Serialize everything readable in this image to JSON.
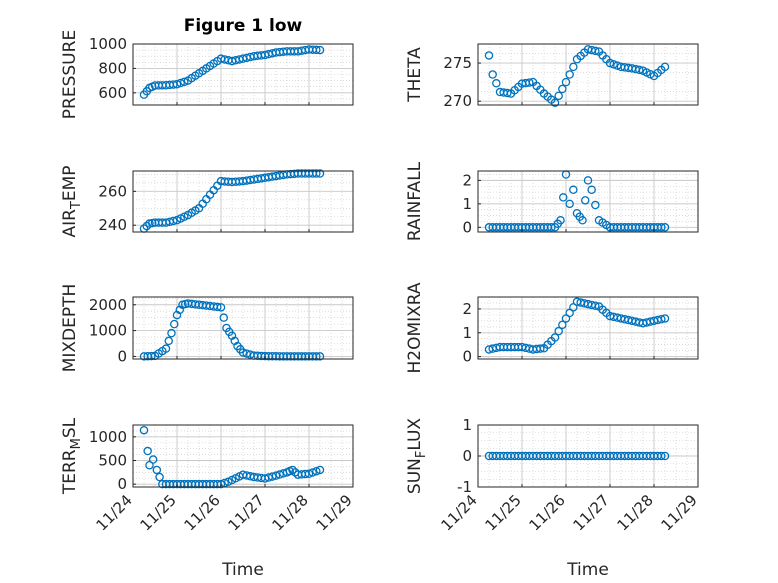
{
  "figure": {
    "title": "Figure 1 low"
  },
  "chart_data": [
    {
      "type": "scatter",
      "ylabel": "PRESSURE",
      "xlabel": "",
      "title": "Figure 1 low",
      "ylim": [
        500,
        1000
      ],
      "yticks": [
        "600",
        "800",
        "1000"
      ],
      "ytick_values": [
        600,
        800,
        1000
      ],
      "x": [
        "2024-11-24 06:00",
        "2024-11-24 09:00",
        "2024-11-24 12:00",
        "2024-11-24 18:00",
        "2024-11-25 00:00",
        "2024-11-25 06:00",
        "2024-11-25 12:00",
        "2024-11-25 18:00",
        "2024-11-26 00:00",
        "2024-11-26 06:00",
        "2024-11-26 12:00",
        "2024-11-26 18:00",
        "2024-11-27 00:00",
        "2024-11-27 06:00",
        "2024-11-27 12:00",
        "2024-11-27 18:00",
        "2024-11-28 00:00",
        "2024-11-28 06:00"
      ],
      "y": [
        585,
        640,
        660,
        662,
        670,
        700,
        760,
        820,
        880,
        860,
        880,
        900,
        910,
        930,
        940,
        940,
        955,
        950
      ]
    },
    {
      "type": "scatter",
      "ylabel": "THETA",
      "xlabel": "",
      "ylim": [
        269.5,
        277.5
      ],
      "yticks": [
        "270",
        "275"
      ],
      "ytick_values": [
        270,
        275
      ],
      "x": [
        "2024-11-24 06:00",
        "2024-11-24 08:00",
        "2024-11-24 12:00",
        "2024-11-24 18:00",
        "2024-11-25 00:00",
        "2024-11-25 06:00",
        "2024-11-25 12:00",
        "2024-11-25 18:00",
        "2024-11-26 00:00",
        "2024-11-26 06:00",
        "2024-11-26 12:00",
        "2024-11-26 18:00",
        "2024-11-27 00:00",
        "2024-11-27 06:00",
        "2024-11-27 12:00",
        "2024-11-27 18:00",
        "2024-11-28 00:00",
        "2024-11-28 06:00"
      ],
      "y": [
        276,
        273.5,
        271.2,
        271,
        272.3,
        272.5,
        271,
        269.8,
        272.5,
        275.5,
        276.8,
        276.5,
        275,
        274.5,
        274.3,
        274,
        273.3,
        274.5
      ]
    },
    {
      "type": "scatter",
      "ylabel": "AIR_TEMP",
      "ylabel_main": "AIR",
      "ylabel_sub": "T",
      "ylabel_rest": "EMP",
      "xlabel": "",
      "ylim": [
        236,
        272
      ],
      "yticks": [
        "240",
        "260"
      ],
      "ytick_values": [
        240,
        260
      ],
      "x": [
        "2024-11-24 06:00",
        "2024-11-24 09:00",
        "2024-11-24 12:00",
        "2024-11-24 18:00",
        "2024-11-25 00:00",
        "2024-11-25 06:00",
        "2024-11-25 12:00",
        "2024-11-25 18:00",
        "2024-11-26 00:00",
        "2024-11-26 06:00",
        "2024-11-26 12:00",
        "2024-11-26 18:00",
        "2024-11-27 00:00",
        "2024-11-27 06:00",
        "2024-11-27 12:00",
        "2024-11-27 18:00",
        "2024-11-28 00:00",
        "2024-11-28 06:00"
      ],
      "y": [
        238,
        241,
        241.5,
        241.5,
        243,
        246,
        250,
        258,
        266,
        265.5,
        266,
        267,
        268,
        269,
        270,
        270.5,
        270.5,
        270.5
      ]
    },
    {
      "type": "scatter",
      "ylabel": "RAINFALL",
      "xlabel": "",
      "ylim": [
        -0.2,
        2.4
      ],
      "yticks": [
        "0",
        "1",
        "2"
      ],
      "ytick_values": [
        0,
        1,
        2
      ],
      "x": [
        "2024-11-24 06:00",
        "2024-11-24 12:00",
        "2024-11-24 18:00",
        "2024-11-25 00:00",
        "2024-11-25 06:00",
        "2024-11-25 12:00",
        "2024-11-25 18:00",
        "2024-11-25 21:00",
        "2024-11-26 00:00",
        "2024-11-26 02:00",
        "2024-11-26 04:00",
        "2024-11-26 06:00",
        "2024-11-26 09:00",
        "2024-11-26 12:00",
        "2024-11-26 14:00",
        "2024-11-26 18:00",
        "2024-11-27 00:00",
        "2024-11-27 06:00",
        "2024-11-27 12:00",
        "2024-11-27 18:00",
        "2024-11-28 00:00",
        "2024-11-28 06:00"
      ],
      "y": [
        0,
        0,
        0,
        0,
        0,
        0,
        0,
        0.3,
        2.25,
        1.0,
        1.6,
        0.6,
        0.3,
        2.0,
        1.6,
        0.3,
        0,
        0,
        0,
        0,
        0,
        0
      ]
    },
    {
      "type": "scatter",
      "ylabel": "MIXDEPTH",
      "xlabel": "",
      "ylim": [
        -100,
        2300
      ],
      "yticks": [
        "0",
        "1000",
        "2000"
      ],
      "ytick_values": [
        0,
        1000,
        2000
      ],
      "x": [
        "2024-11-24 06:00",
        "2024-11-24 12:00",
        "2024-11-24 18:00",
        "2024-11-24 21:00",
        "2024-11-25 00:00",
        "2024-11-25 03:00",
        "2024-11-25 06:00",
        "2024-11-25 12:00",
        "2024-11-25 18:00",
        "2024-11-26 00:00",
        "2024-11-26 03:00",
        "2024-11-26 06:00",
        "2024-11-26 09:00",
        "2024-11-26 12:00",
        "2024-11-26 18:00",
        "2024-11-27 00:00",
        "2024-11-27 12:00",
        "2024-11-28 00:00",
        "2024-11-28 06:00"
      ],
      "y": [
        0,
        20,
        300,
        900,
        1600,
        2000,
        2050,
        2000,
        1950,
        1900,
        1100,
        800,
        400,
        150,
        30,
        10,
        0,
        0,
        0
      ]
    },
    {
      "type": "scatter",
      "ylabel": "H2OMIXRA",
      "xlabel": "",
      "ylim": [
        -0.1,
        2.5
      ],
      "yticks": [
        "0",
        "1",
        "2"
      ],
      "ytick_values": [
        0,
        1,
        2
      ],
      "x": [
        "2024-11-24 06:00",
        "2024-11-24 12:00",
        "2024-11-24 18:00",
        "2024-11-25 00:00",
        "2024-11-25 06:00",
        "2024-11-25 12:00",
        "2024-11-25 18:00",
        "2024-11-26 00:00",
        "2024-11-26 06:00",
        "2024-11-26 12:00",
        "2024-11-26 18:00",
        "2024-11-27 00:00",
        "2024-11-27 06:00",
        "2024-11-27 12:00",
        "2024-11-27 18:00",
        "2024-11-28 00:00",
        "2024-11-28 06:00"
      ],
      "y": [
        0.3,
        0.4,
        0.4,
        0.4,
        0.3,
        0.35,
        0.8,
        1.6,
        2.3,
        2.2,
        2.1,
        1.7,
        1.6,
        1.5,
        1.4,
        1.5,
        1.6
      ]
    },
    {
      "type": "scatter",
      "ylabel": "TERR_MSL",
      "ylabel_main": "TERR",
      "ylabel_sub": "M",
      "ylabel_rest": "SL",
      "xlabel": "Time",
      "ylim": [
        -60,
        1250
      ],
      "yticks": [
        "0",
        "500",
        "1000"
      ],
      "ytick_values": [
        0,
        500,
        1000
      ],
      "x": [
        "2024-11-24 06:00",
        "2024-11-24 08:00",
        "2024-11-24 09:00",
        "2024-11-24 11:00",
        "2024-11-24 13:00",
        "2024-11-24 16:00",
        "2024-11-25 00:00",
        "2024-11-25 12:00",
        "2024-11-26 00:00",
        "2024-11-26 04:00",
        "2024-11-26 12:00",
        "2024-11-26 18:00",
        "2024-11-27 00:00",
        "2024-11-27 06:00",
        "2024-11-27 12:00",
        "2024-11-27 15:00",
        "2024-11-27 18:00",
        "2024-11-28 00:00",
        "2024-11-28 06:00"
      ],
      "y": [
        1140,
        700,
        400,
        520,
        300,
        0,
        0,
        0,
        0,
        50,
        200,
        150,
        120,
        180,
        250,
        300,
        200,
        220,
        300
      ],
      "xticks": [
        "11/24",
        "11/25",
        "11/26",
        "11/27",
        "11/28",
        "11/29"
      ],
      "xtick_values": [
        "2024-11-24",
        "2024-11-25",
        "2024-11-26",
        "2024-11-27",
        "2024-11-28",
        "2024-11-29"
      ],
      "xlim": [
        "2024-11-24 00:00",
        "2024-11-29 00:00"
      ]
    },
    {
      "type": "scatter",
      "ylabel": "SUN_FLUX",
      "ylabel_main": "SUN",
      "ylabel_sub": "F",
      "ylabel_rest": "LUX",
      "xlabel": "Time",
      "ylim": [
        -1,
        1
      ],
      "yticks": [
        "-1",
        "0",
        "1"
      ],
      "ytick_values": [
        -1,
        0,
        1
      ],
      "x": [
        "2024-11-24 06:00",
        "2024-11-25 00:00",
        "2024-11-25 12:00",
        "2024-11-26 00:00",
        "2024-11-26 12:00",
        "2024-11-27 00:00",
        "2024-11-27 12:00",
        "2024-11-28 00:00",
        "2024-11-28 06:00"
      ],
      "y": [
        0,
        0,
        0,
        0,
        0,
        0,
        0,
        0,
        0
      ],
      "xticks": [
        "11/24",
        "11/25",
        "11/26",
        "11/27",
        "11/28",
        "11/29"
      ],
      "xtick_values": [
        "2024-11-24",
        "2024-11-25",
        "2024-11-26",
        "2024-11-27",
        "2024-11-28",
        "2024-11-29"
      ],
      "xlim": [
        "2024-11-24 00:00",
        "2024-11-29 00:00"
      ]
    }
  ],
  "style": {
    "marker_color": "#0072BD",
    "axis_color": "#262626",
    "grid_color": "#c8c8c8"
  }
}
